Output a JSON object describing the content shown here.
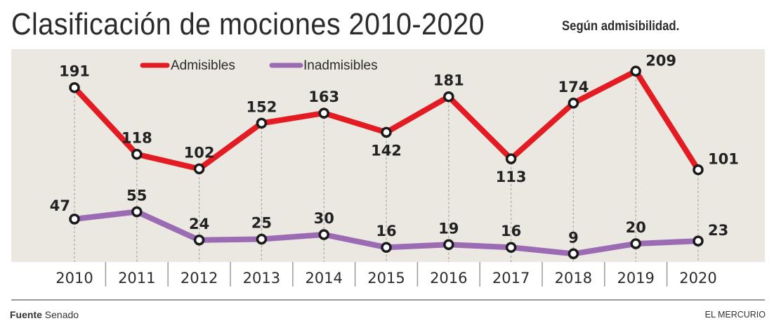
{
  "header": {
    "title": "Clasificación de mociones 2010-2020",
    "subtitle": "Según admisibilidad."
  },
  "footer": {
    "source_label": "Fuente",
    "source_value": "Senado",
    "brand": "EL MERCURIO"
  },
  "colors": {
    "admisibles": "#e31b23",
    "inadmisibles": "#9b6bb3",
    "panel_bg": "#ebe8e1",
    "marker_stroke": "#1a1a1a",
    "marker_fill": "#ffffff"
  },
  "chart_data": {
    "type": "line",
    "title": "Clasificación de mociones 2010-2020",
    "subtitle": "Según admisibilidad.",
    "xlabel": "",
    "ylabel": "",
    "x": [
      "2010",
      "2011",
      "2012",
      "2013",
      "2014",
      "2015",
      "2016",
      "2017",
      "2018",
      "2019",
      "2020"
    ],
    "series": [
      {
        "name": "Admisibles",
        "color": "#e31b23",
        "values": [
          191,
          118,
          102,
          152,
          163,
          142,
          181,
          113,
          174,
          209,
          101
        ],
        "label_side": [
          "above",
          "above",
          "above",
          "above",
          "above",
          "below",
          "above",
          "below",
          "above",
          "right",
          "right"
        ]
      },
      {
        "name": "Inadmisibles",
        "color": "#9b6bb3",
        "values": [
          47,
          55,
          24,
          25,
          30,
          16,
          19,
          16,
          9,
          20,
          23
        ],
        "label_side": [
          "left",
          "above",
          "above",
          "above",
          "above",
          "above",
          "above",
          "above",
          "above",
          "above",
          "right"
        ]
      }
    ],
    "ylim": [
      0,
      225
    ],
    "grid": "vertical-dotted",
    "legend": "top-center"
  }
}
